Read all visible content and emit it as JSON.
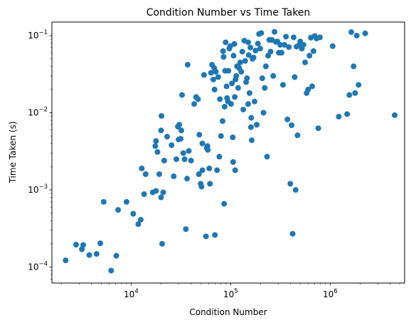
{
  "chart_data": {
    "type": "scatter",
    "title": "Condition Number vs Time Taken",
    "xlabel": "Condition Number",
    "ylabel": "Time Taken (s)",
    "xscale": "log",
    "yscale": "log",
    "xlim": [
      1600,
      5600000
    ],
    "ylim": [
      6.2e-05,
      0.15
    ],
    "grid": false,
    "marker_color": "#1f77b4",
    "x_ticks": [
      {
        "value": 10000,
        "base": "10",
        "exp": "4"
      },
      {
        "value": 100000,
        "base": "10",
        "exp": "5"
      },
      {
        "value": 1000000,
        "base": "10",
        "exp": "6"
      }
    ],
    "y_ticks": [
      {
        "value": 0.0001,
        "base": "10",
        "exp": "−4"
      },
      {
        "value": 0.001,
        "base": "10",
        "exp": "−3"
      },
      {
        "value": 0.01,
        "base": "10",
        "exp": "−2"
      },
      {
        "value": 0.1,
        "base": "10",
        "exp": "−1"
      }
    ],
    "points": [
      [
        2200,
        0.000122
      ],
      [
        2800,
        0.000195
      ],
      [
        3200,
        0.00017
      ],
      [
        3300,
        0.000193
      ],
      [
        3800,
        0.000143
      ],
      [
        4500,
        0.000148
      ],
      [
        4900,
        0.000203
      ],
      [
        5300,
        0.0007
      ],
      [
        6300,
        9e-05
      ],
      [
        7100,
        0.00014
      ],
      [
        7400,
        0.00055
      ],
      [
        9000,
        0.0007
      ],
      [
        10500,
        0.00049
      ],
      [
        11800,
        0.00036
      ],
      [
        12500,
        0.00041
      ],
      [
        12800,
        0.0019
      ],
      [
        13500,
        0.00088
      ],
      [
        14000,
        0.0016
      ],
      [
        16500,
        0.00093
      ],
      [
        17800,
        0.00097
      ],
      [
        17500,
        0.0037
      ],
      [
        17800,
        0.0043
      ],
      [
        18400,
        0.0031
      ],
      [
        19200,
        0.0016
      ],
      [
        20000,
        0.0008
      ],
      [
        20000,
        0.0059
      ],
      [
        20200,
        0.0091
      ],
      [
        20500,
        0.0002
      ],
      [
        21000,
        0.00093
      ],
      [
        21500,
        0.0024
      ],
      [
        23000,
        0.0049
      ],
      [
        25500,
        0.0038
      ],
      [
        26800,
        0.0015
      ],
      [
        28500,
        0.0025
      ],
      [
        29500,
        0.0066
      ],
      [
        30000,
        0.0045
      ],
      [
        30500,
        0.007
      ],
      [
        31500,
        0.0046
      ],
      [
        32000,
        0.0059
      ],
      [
        32500,
        0.017
      ],
      [
        33500,
        0.003
      ],
      [
        34500,
        0.0025
      ],
      [
        35500,
        0.00031
      ],
      [
        36500,
        0.0014
      ],
      [
        37000,
        0.042
      ],
      [
        38000,
        0.0032
      ],
      [
        40000,
        0.0024
      ],
      [
        43000,
        0.013
      ],
      [
        45000,
        0.016
      ],
      [
        47000,
        0.015
      ],
      [
        48000,
        0.0016
      ],
      [
        48500,
        0.0052
      ],
      [
        50000,
        0.0012
      ],
      [
        51000,
        0.0011
      ],
      [
        52000,
        0.004
      ],
      [
        52000,
        0.0018
      ],
      [
        54000,
        0.031
      ],
      [
        56500,
        0.00025
      ],
      [
        57500,
        0.0035
      ],
      [
        58500,
        0.0037
      ],
      [
        59000,
        0.0033
      ],
      [
        61000,
        0.0019
      ],
      [
        62000,
        0.0012
      ],
      [
        63500,
        0.033
      ],
      [
        65000,
        0.042
      ],
      [
        67000,
        0.027
      ],
      [
        68500,
        0.038
      ],
      [
        69000,
        0.02
      ],
      [
        69500,
        0.00026
      ],
      [
        71000,
        0.034
      ],
      [
        73000,
        0.0018
      ],
      [
        75000,
        0.029
      ],
      [
        77000,
        0.0027
      ],
      [
        78000,
        0.015
      ],
      [
        80000,
        0.005
      ],
      [
        83000,
        0.0078
      ],
      [
        84000,
        0.063
      ],
      [
        85000,
        0.053
      ],
      [
        86000,
        0.00066
      ],
      [
        87000,
        0.012
      ],
      [
        88000,
        0.035
      ],
      [
        89000,
        0.082
      ],
      [
        91000,
        0.022
      ],
      [
        92000,
        0.0155
      ],
      [
        94000,
        0.014
      ],
      [
        95000,
        0.035
      ],
      [
        97000,
        0.068
      ],
      [
        99000,
        0.073
      ],
      [
        101000,
        0.013
      ],
      [
        103000,
        0.024
      ],
      [
        105000,
        0.0048
      ],
      [
        106000,
        0.0023
      ],
      [
        107000,
        0.055
      ],
      [
        109000,
        0.078
      ],
      [
        110000,
        0.016
      ],
      [
        111000,
        0.0018
      ],
      [
        112000,
        0.027
      ],
      [
        114000,
        0.03
      ],
      [
        116000,
        0.04
      ],
      [
        119000,
        0.021
      ],
      [
        122000,
        0.038
      ],
      [
        125000,
        0.045
      ],
      [
        128000,
        0.034
      ],
      [
        131000,
        0.062
      ],
      [
        134000,
        0.011
      ],
      [
        137000,
        0.086
      ],
      [
        140000,
        0.047
      ],
      [
        143000,
        0.025
      ],
      [
        146000,
        0.028
      ],
      [
        150000,
        0.082
      ],
      [
        150000,
        0.013
      ],
      [
        152000,
        0.056
      ],
      [
        155000,
        0.018
      ],
      [
        158000,
        0.07
      ],
      [
        160000,
        0.0065
      ],
      [
        161000,
        0.0086
      ],
      [
        163000,
        0.0044
      ],
      [
        166000,
        0.05
      ],
      [
        170000,
        0.052
      ],
      [
        174000,
        0.014
      ],
      [
        178000,
        0.064
      ],
      [
        183000,
        0.007
      ],
      [
        188000,
        0.079
      ],
      [
        193000,
        0.105
      ],
      [
        198000,
        0.068
      ],
      [
        203000,
        0.108
      ],
      [
        208000,
        0.028
      ],
      [
        214000,
        0.01
      ],
      [
        220000,
        0.021
      ],
      [
        226000,
        0.04
      ],
      [
        232000,
        0.0027
      ],
      [
        238000,
        0.055
      ],
      [
        245000,
        0.088
      ],
      [
        252000,
        0.062
      ],
      [
        260000,
        0.088
      ],
      [
        268000,
        0.03
      ],
      [
        276000,
        0.112
      ],
      [
        285000,
        0.083
      ],
      [
        295000,
        0.084
      ],
      [
        305000,
        0.06
      ],
      [
        315000,
        0.076
      ],
      [
        325000,
        0.06
      ],
      [
        336000,
        0.023
      ],
      [
        348000,
        0.076
      ],
      [
        360000,
        0.097
      ],
      [
        372000,
        0.0082
      ],
      [
        385000,
        0.071
      ],
      [
        398000,
        0.0012
      ],
      [
        410000,
        0.0069
      ],
      [
        420000,
        0.00027
      ],
      [
        430000,
        0.095
      ],
      [
        440000,
        0.029
      ],
      [
        450000,
        0.001
      ],
      [
        460000,
        0.072
      ],
      [
        470000,
        0.0051
      ],
      [
        485000,
        0.075
      ],
      [
        500000,
        0.084
      ],
      [
        520000,
        0.068
      ],
      [
        540000,
        0.076
      ],
      [
        560000,
        0.045
      ],
      [
        580000,
        0.018
      ],
      [
        600000,
        0.02
      ],
      [
        620000,
        0.055
      ],
      [
        640000,
        0.094
      ],
      [
        660000,
        0.022
      ],
      [
        680000,
        0.063
      ],
      [
        700000,
        0.099
      ],
      [
        730000,
        0.092
      ],
      [
        760000,
        0.0063
      ],
      [
        790000,
        0.095
      ],
      [
        1060000,
        0.073
      ],
      [
        1220000,
        0.0089
      ],
      [
        1480000,
        0.0096
      ],
      [
        1560000,
        0.017
      ],
      [
        1630000,
        0.111
      ],
      [
        1720000,
        0.04
      ],
      [
        1780000,
        0.018
      ],
      [
        1850000,
        0.1
      ],
      [
        1930000,
        0.023
      ],
      [
        2250000,
        0.107
      ],
      [
        4450000,
        0.0093
      ]
    ]
  }
}
